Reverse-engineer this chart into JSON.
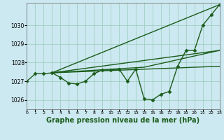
{
  "background_color": "#cce8f0",
  "plot_bg_color": "#cce8f0",
  "grid_color": "#99ccbb",
  "line_color": "#1a5c1a",
  "marker_color": "#1a5c1a",
  "xlabel": "Graphe pression niveau de la mer (hPa)",
  "xlabel_fontsize": 7,
  "ylim": [
    1025.5,
    1031.2
  ],
  "xlim": [
    0,
    23
  ],
  "yticks": [
    1026,
    1027,
    1028,
    1029,
    1030
  ],
  "xtick_labels": [
    "0",
    "1",
    "2",
    "3",
    "4",
    "5",
    "6",
    "7",
    "8",
    "9",
    "10",
    "11",
    "12",
    "13",
    "14",
    "15",
    "16",
    "17",
    "18",
    "19",
    "20",
    "21",
    "22",
    "23"
  ],
  "series": [
    {
      "x": [
        0,
        1,
        2,
        3,
        4,
        5,
        6,
        7,
        8,
        9,
        10,
        11,
        12,
        13,
        14,
        15,
        16,
        17,
        18,
        19,
        20,
        21,
        22,
        23
      ],
      "y": [
        1027.0,
        1027.4,
        1027.4,
        1027.45,
        1027.2,
        1026.9,
        1026.85,
        1027.0,
        1027.4,
        1027.6,
        1027.6,
        1027.65,
        1027.0,
        1027.65,
        1026.05,
        1026.0,
        1026.3,
        1026.45,
        1027.8,
        1028.65,
        1028.65,
        1030.0,
        1030.55,
        1031.1
      ],
      "marker": true,
      "lw": 1.0
    },
    {
      "x": [
        3,
        23
      ],
      "y": [
        1027.45,
        1031.1
      ],
      "marker": false,
      "lw": 1.0
    },
    {
      "x": [
        3,
        23
      ],
      "y": [
        1027.45,
        1028.65
      ],
      "marker": false,
      "lw": 1.0
    },
    {
      "x": [
        3,
        23
      ],
      "y": [
        1027.45,
        1027.8
      ],
      "marker": false,
      "lw": 1.0
    },
    {
      "x": [
        3,
        14,
        23
      ],
      "y": [
        1027.45,
        1027.75,
        1028.65
      ],
      "marker": false,
      "lw": 1.0
    }
  ]
}
